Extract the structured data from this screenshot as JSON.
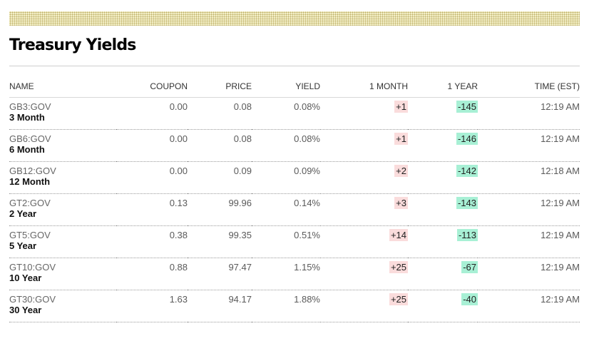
{
  "title": "Treasury Yields",
  "columns": {
    "name": "NAME",
    "coupon": "COUPON",
    "price": "PRICE",
    "yield": "YIELD",
    "month": "1 MONTH",
    "year": "1 YEAR",
    "time": "TIME (EST)"
  },
  "rows": [
    {
      "ticker": "GB3:GOV",
      "term": "3 Month",
      "coupon": "0.00",
      "price": "0.08",
      "yield": "0.08%",
      "month": "+1",
      "year": "-145",
      "time": "12:19 AM"
    },
    {
      "ticker": "GB6:GOV",
      "term": "6 Month",
      "coupon": "0.00",
      "price": "0.08",
      "yield": "0.08%",
      "month": "+1",
      "year": "-146",
      "time": "12:19 AM"
    },
    {
      "ticker": "GB12:GOV",
      "term": "12 Month",
      "coupon": "0.00",
      "price": "0.09",
      "yield": "0.09%",
      "month": "+2",
      "year": "-142",
      "time": "12:18 AM"
    },
    {
      "ticker": "GT2:GOV",
      "term": "2 Year",
      "coupon": "0.13",
      "price": "99.96",
      "yield": "0.14%",
      "month": "+3",
      "year": "-143",
      "time": "12:19 AM"
    },
    {
      "ticker": "GT5:GOV",
      "term": "5 Year",
      "coupon": "0.38",
      "price": "99.35",
      "yield": "0.51%",
      "month": "+14",
      "year": "-113",
      "time": "12:19 AM"
    },
    {
      "ticker": "GT10:GOV",
      "term": "10 Year",
      "coupon": "0.88",
      "price": "97.47",
      "yield": "1.15%",
      "month": "+25",
      "year": "-67",
      "time": "12:19 AM"
    },
    {
      "ticker": "GT30:GOV",
      "term": "30 Year",
      "coupon": "1.63",
      "price": "94.17",
      "yield": "1.88%",
      "month": "+25",
      "year": "-40",
      "time": "12:19 AM"
    }
  ],
  "colors": {
    "up_bg": "#fadcdc",
    "down_bg": "#a8f0d5"
  }
}
